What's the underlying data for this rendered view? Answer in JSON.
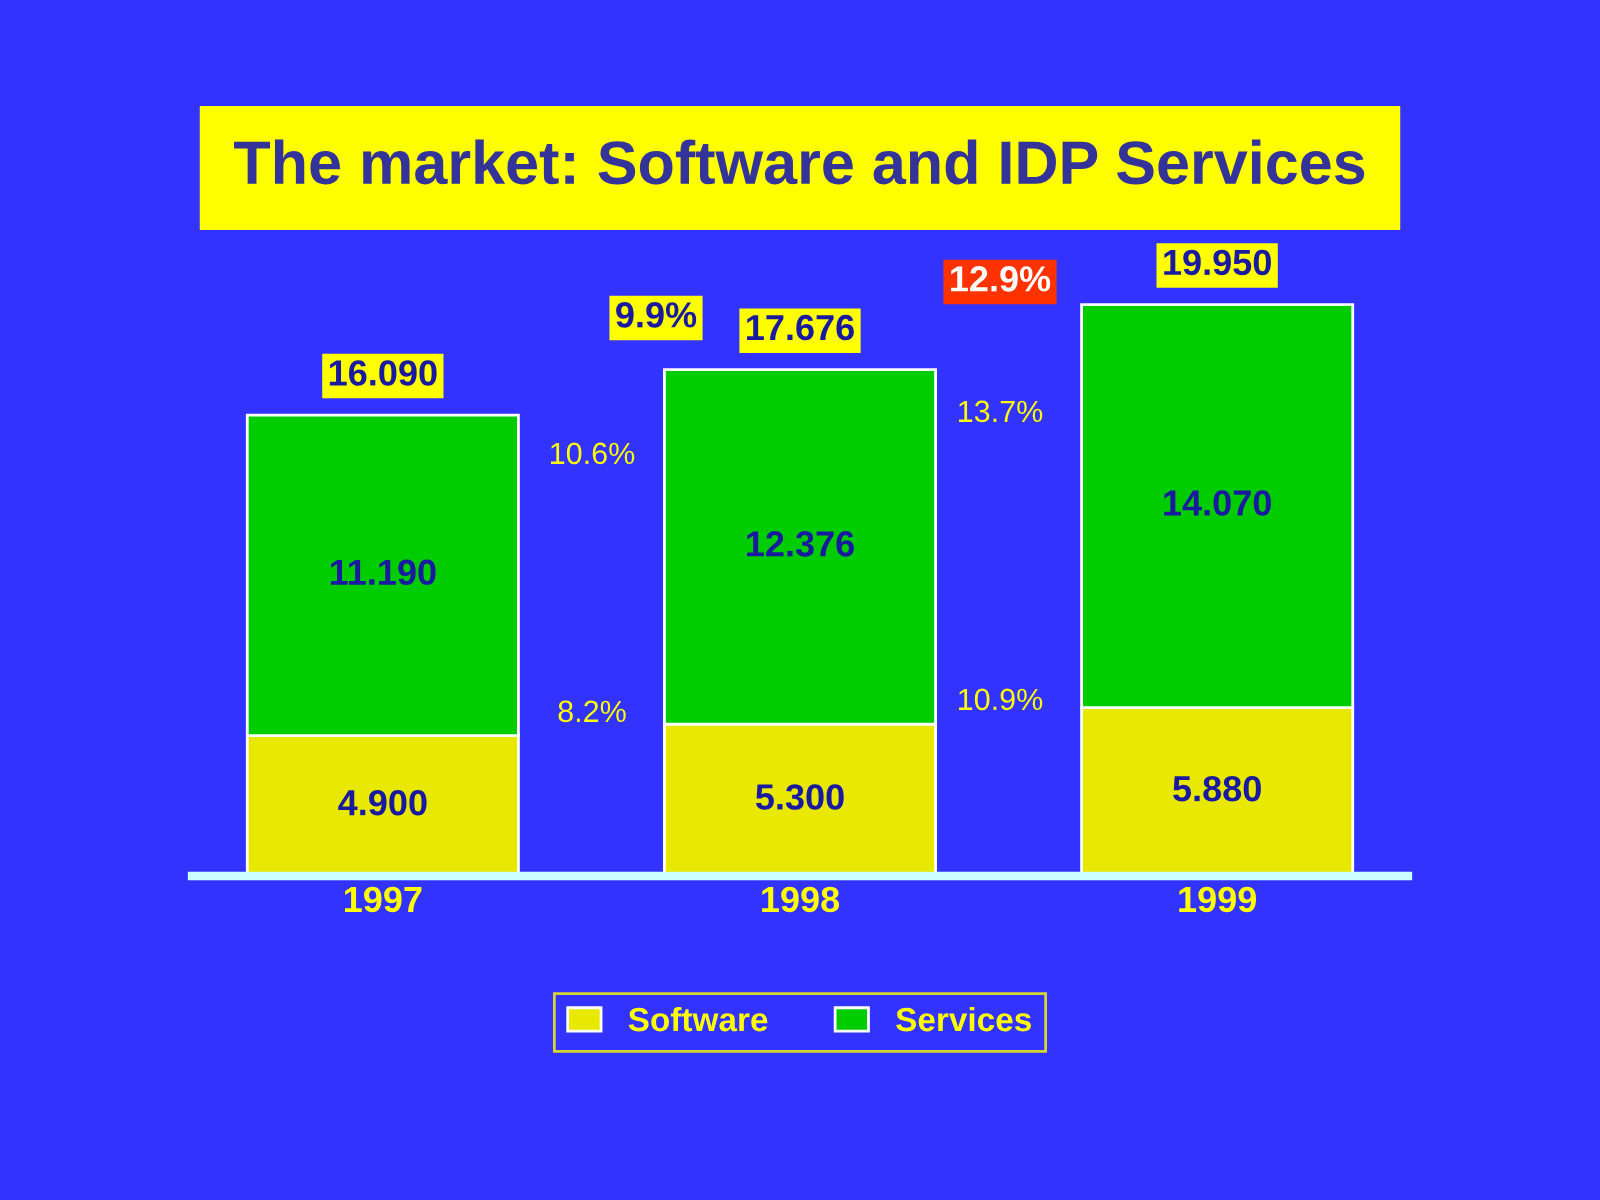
{
  "chart_data": {
    "type": "bar",
    "title": "The market: Software and IDP Services",
    "categories": [
      "1997",
      "1998",
      "1999"
    ],
    "stacked": true,
    "series": [
      {
        "name": "Software",
        "color": "#e8e800",
        "values": [
          4.9,
          5.3,
          5.88
        ],
        "value_labels": [
          "4.900",
          "5.300",
          "5.880"
        ]
      },
      {
        "name": "Services",
        "color": "#00cc00",
        "values": [
          11.19,
          12.376,
          14.07
        ],
        "value_labels": [
          "11.190",
          "12.376",
          "14.070"
        ]
      }
    ],
    "totals": [
      "16.090",
      "17.676",
      "19.950"
    ],
    "annotations": [
      "9.9%",
      "12.9%",
      "10.6%",
      "13.7%",
      "8.2%",
      "10.9%"
    ],
    "tick_labels": "x",
    "legend": "bottom",
    "grid": false
  }
}
